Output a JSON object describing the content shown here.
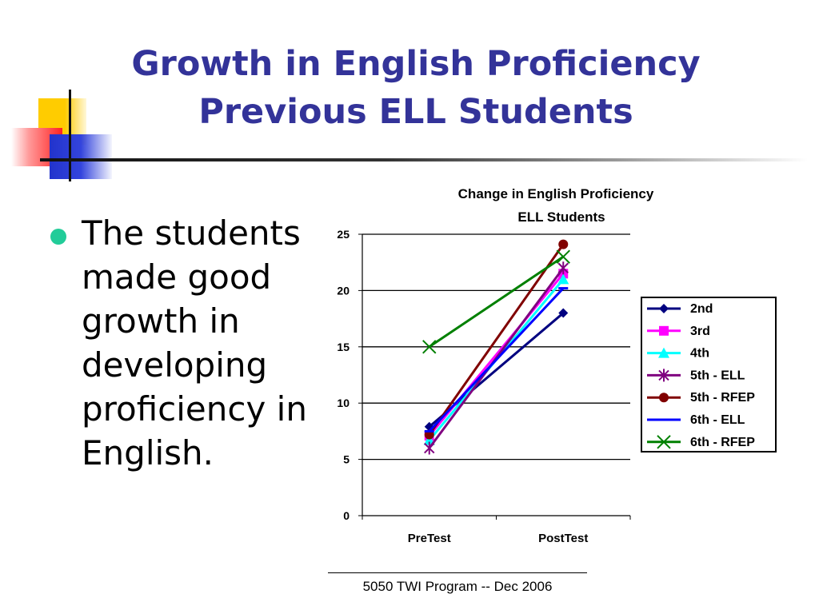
{
  "slide": {
    "title_line1": "Growth in English Proficiency",
    "title_line2": "Previous ELL Students",
    "bullet": "The students made good growth in developing proficiency in English.",
    "footer": "5050 TWI Program -- Dec 2006"
  },
  "colors": {
    "title": "#333399",
    "bullet": "#22cc99"
  },
  "chart_data": {
    "type": "line",
    "title": "Change in English Proficiency",
    "subtitle": "ELL Students",
    "categories": [
      "PreTest",
      "PostTest"
    ],
    "ylim": [
      0,
      25
    ],
    "yticks": [
      0,
      5,
      10,
      15,
      20,
      25
    ],
    "grid": true,
    "legend_position": "right",
    "series": [
      {
        "name": "2nd",
        "values": [
          7.9,
          18
        ],
        "color": "#000080",
        "marker": "diamond"
      },
      {
        "name": "3rd",
        "values": [
          7.1,
          21.5
        ],
        "color": "#ff00ff",
        "marker": "square"
      },
      {
        "name": "4th",
        "values": [
          6.7,
          21
        ],
        "color": "#00ffff",
        "marker": "triangle"
      },
      {
        "name": "5th - ELL",
        "values": [
          6,
          22
        ],
        "color": "#800080",
        "marker": "asterisk"
      },
      {
        "name": "5th - RFEP",
        "values": [
          7.2,
          24.1
        ],
        "color": "#800000",
        "marker": "circle"
      },
      {
        "name": "6th - ELL",
        "values": [
          7.5,
          20.2
        ],
        "color": "#0000ff",
        "marker": "dash"
      },
      {
        "name": "6th - RFEP",
        "values": [
          15,
          23
        ],
        "color": "#008000",
        "marker": "x"
      }
    ]
  }
}
